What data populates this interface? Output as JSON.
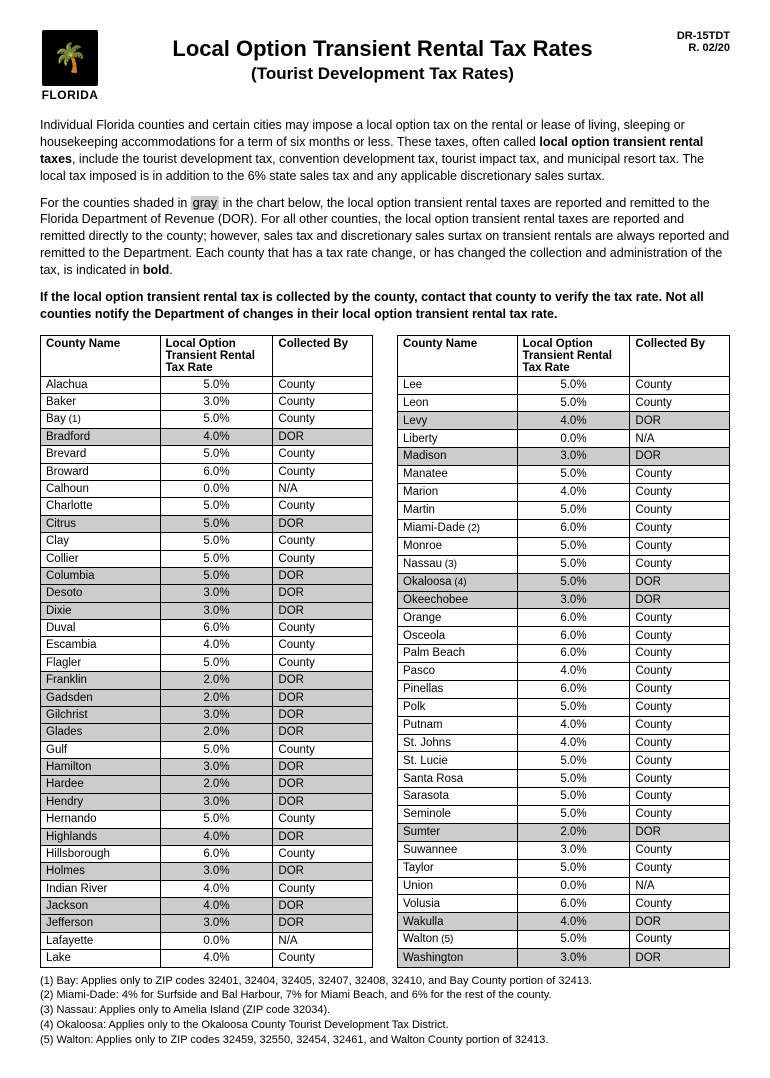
{
  "doc": {
    "form_id": "DR-15TDT",
    "revision": "R. 02/20",
    "logo_label": "FLORIDA",
    "title": "Local Option Transient Rental Tax Rates",
    "subtitle": "(Tourist Development Tax Rates)"
  },
  "paragraphs": {
    "p1_a": "Individual Florida counties and certain cities may impose a local option tax on the rental or lease of living, sleeping or housekeeping accommodations for a term of six months or less. These taxes, often called ",
    "p1_bold": "local option transient rental taxes",
    "p1_b": ", include the tourist development tax, convention development tax, tourist impact tax, and municipal resort tax. The local tax imposed is in addition to the 6% state sales tax and any applicable discretionary sales surtax.",
    "p2_a": "For the counties shaded in ",
    "p2_gray": "gray",
    "p2_b": " in the chart below, the local option transient rental taxes are reported and remitted to the Florida Department of Revenue (DOR). For all other counties, the local option transient rental taxes are reported and remitted directly to the county; however, sales tax and discretionary sales surtax on transient rentals are always reported and remitted to the Department. Each county that has a tax rate change, or has changed the collection and administration of the tax, is indicated in ",
    "p2_bold": "bold",
    "p2_c": ".",
    "p3": "If the local option transient rental tax is collected by the county, contact that county to verify the tax rate. Not all counties notify the Department of changes in their local option transient rental tax rate."
  },
  "table": {
    "headers": {
      "county": "County Name",
      "rate": "Local Option Transient Rental Tax Rate",
      "by": "Collected By"
    },
    "left": [
      {
        "name": "Alachua",
        "rate": "5.0%",
        "by": "County",
        "shaded": false,
        "bold": false
      },
      {
        "name": "Baker",
        "rate": "3.0%",
        "by": "County",
        "shaded": false,
        "bold": false
      },
      {
        "name": "Bay",
        "note": "(1)",
        "rate": "5.0%",
        "by": "County",
        "shaded": false,
        "bold": false
      },
      {
        "name": "Bradford",
        "rate": "4.0%",
        "by": "DOR",
        "shaded": true,
        "bold": false
      },
      {
        "name": "Brevard",
        "rate": "5.0%",
        "by": "County",
        "shaded": false,
        "bold": false
      },
      {
        "name": "Broward",
        "rate": "6.0%",
        "by": "County",
        "shaded": false,
        "bold": false
      },
      {
        "name": "Calhoun",
        "rate": "0.0%",
        "by": "N/A",
        "shaded": false,
        "bold": false
      },
      {
        "name": "Charlotte",
        "rate": "5.0%",
        "by": "County",
        "shaded": false,
        "bold": false
      },
      {
        "name": "Citrus",
        "rate": "5.0%",
        "by": "DOR",
        "shaded": true,
        "bold": false
      },
      {
        "name": "Clay",
        "rate": "5.0%",
        "by": "County",
        "shaded": false,
        "bold": false
      },
      {
        "name": "Collier",
        "rate": "5.0%",
        "by": "County",
        "shaded": false,
        "bold": false
      },
      {
        "name": "Columbia",
        "rate": "5.0%",
        "by": "DOR",
        "shaded": true,
        "bold": false
      },
      {
        "name": "Desoto",
        "rate": "3.0%",
        "by": "DOR",
        "shaded": true,
        "bold": false
      },
      {
        "name": "Dixie",
        "rate": "3.0%",
        "by": "DOR",
        "shaded": true,
        "bold": false
      },
      {
        "name": "Duval",
        "rate": "6.0%",
        "by": "County",
        "shaded": false,
        "bold": false
      },
      {
        "name": "Escambia",
        "rate": "4.0%",
        "by": "County",
        "shaded": false,
        "bold": false
      },
      {
        "name": "Flagler",
        "rate": "5.0%",
        "by": "County",
        "shaded": false,
        "bold": false
      },
      {
        "name": "Franklin",
        "rate": "2.0%",
        "by": "DOR",
        "shaded": true,
        "bold": false
      },
      {
        "name": "Gadsden",
        "rate": "2.0%",
        "by": "DOR",
        "shaded": true,
        "bold": false
      },
      {
        "name": "Gilchrist",
        "rate": "3.0%",
        "by": "DOR",
        "shaded": true,
        "bold": false
      },
      {
        "name": "Glades",
        "rate": "2.0%",
        "by": "DOR",
        "shaded": true,
        "bold": false
      },
      {
        "name": "Gulf",
        "rate": "5.0%",
        "by": "County",
        "shaded": false,
        "bold": false
      },
      {
        "name": "Hamilton",
        "rate": "3.0%",
        "by": "DOR",
        "shaded": true,
        "bold": false
      },
      {
        "name": "Hardee",
        "rate": "2.0%",
        "by": "DOR",
        "shaded": true,
        "bold": false
      },
      {
        "name": "Hendry",
        "rate": "3.0%",
        "by": "DOR",
        "shaded": true,
        "bold": false
      },
      {
        "name": "Hernando",
        "rate": "5.0%",
        "by": "County",
        "shaded": false,
        "bold": false
      },
      {
        "name": "Highlands",
        "rate": "4.0%",
        "by": "DOR",
        "shaded": true,
        "bold": false
      },
      {
        "name": "Hillsborough",
        "rate": "6.0%",
        "by": "County",
        "shaded": false,
        "bold": false
      },
      {
        "name": "Holmes",
        "rate": "3.0%",
        "by": "DOR",
        "shaded": true,
        "bold": false
      },
      {
        "name": "Indian River",
        "rate": "4.0%",
        "by": "County",
        "shaded": false,
        "bold": false
      },
      {
        "name": "Jackson",
        "rate": "4.0%",
        "by": "DOR",
        "shaded": true,
        "bold": false
      },
      {
        "name": "Jefferson",
        "rate": "3.0%",
        "by": "DOR",
        "shaded": true,
        "bold": false
      },
      {
        "name": "Lafayette",
        "rate": "0.0%",
        "by": "N/A",
        "shaded": false,
        "bold": false
      },
      {
        "name": "Lake",
        "rate": "4.0%",
        "by": "County",
        "shaded": false,
        "bold": false
      }
    ],
    "right": [
      {
        "name": "Lee",
        "rate": "5.0%",
        "by": "County",
        "shaded": false,
        "bold": false
      },
      {
        "name": "Leon",
        "rate": "5.0%",
        "by": "County",
        "shaded": false,
        "bold": false
      },
      {
        "name": "Levy",
        "rate": "4.0%",
        "by": "DOR",
        "shaded": true,
        "bold": false
      },
      {
        "name": "Liberty",
        "rate": "0.0%",
        "by": "N/A",
        "shaded": false,
        "bold": false
      },
      {
        "name": "Madison",
        "rate": "3.0%",
        "by": "DOR",
        "shaded": true,
        "bold": false
      },
      {
        "name": "Manatee",
        "rate": "5.0%",
        "by": "County",
        "shaded": false,
        "bold": false
      },
      {
        "name": "Marion",
        "rate": "4.0%",
        "by": "County",
        "shaded": false,
        "bold": false
      },
      {
        "name": "Martin",
        "rate": "5.0%",
        "by": "County",
        "shaded": false,
        "bold": false
      },
      {
        "name": "Miami-Dade",
        "note": "(2)",
        "rate": "6.0%",
        "by": "County",
        "shaded": false,
        "bold": false
      },
      {
        "name": "Monroe",
        "rate": "5.0%",
        "by": "County",
        "shaded": false,
        "bold": false
      },
      {
        "name": "Nassau",
        "note": "(3)",
        "rate": "5.0%",
        "by": "County",
        "shaded": false,
        "bold": false
      },
      {
        "name": "Okaloosa",
        "note": "(4)",
        "rate": "5.0%",
        "by": "DOR",
        "shaded": true,
        "bold": false
      },
      {
        "name": "Okeechobee",
        "rate": "3.0%",
        "by": "DOR",
        "shaded": true,
        "bold": false
      },
      {
        "name": "Orange",
        "rate": "6.0%",
        "by": "County",
        "shaded": false,
        "bold": false
      },
      {
        "name": "Osceola",
        "rate": "6.0%",
        "by": "County",
        "shaded": false,
        "bold": false
      },
      {
        "name": "Palm Beach",
        "rate": "6.0%",
        "by": "County",
        "shaded": false,
        "bold": false
      },
      {
        "name": "Pasco",
        "rate": "4.0%",
        "by": "County",
        "shaded": false,
        "bold": false
      },
      {
        "name": "Pinellas",
        "rate": "6.0%",
        "by": "County",
        "shaded": false,
        "bold": false
      },
      {
        "name": "Polk",
        "rate": "5.0%",
        "by": "County",
        "shaded": false,
        "bold": false
      },
      {
        "name": "Putnam",
        "rate": "4.0%",
        "by": "County",
        "shaded": false,
        "bold": false
      },
      {
        "name": "St. Johns",
        "rate": "4.0%",
        "by": "County",
        "shaded": false,
        "bold": false
      },
      {
        "name": "St. Lucie",
        "rate": "5.0%",
        "by": "County",
        "shaded": false,
        "bold": false
      },
      {
        "name": "Santa Rosa",
        "rate": "5.0%",
        "by": "County",
        "shaded": false,
        "bold": false
      },
      {
        "name": "Sarasota",
        "rate": "5.0%",
        "by": "County",
        "shaded": false,
        "bold": false
      },
      {
        "name": "Seminole",
        "rate": "5.0%",
        "by": "County",
        "shaded": false,
        "bold": false
      },
      {
        "name": "Sumter",
        "rate": "2.0%",
        "by": "DOR",
        "shaded": true,
        "bold": false
      },
      {
        "name": "Suwannee",
        "rate": "3.0%",
        "by": "County",
        "shaded": false,
        "bold": false
      },
      {
        "name": "Taylor",
        "rate": "5.0%",
        "by": "County",
        "shaded": false,
        "bold": false
      },
      {
        "name": "Union",
        "rate": "0.0%",
        "by": "N/A",
        "shaded": false,
        "bold": false
      },
      {
        "name": "Volusia",
        "rate": "6.0%",
        "by": "County",
        "shaded": false,
        "bold": false
      },
      {
        "name": "Wakulla",
        "rate": "4.0%",
        "by": "DOR",
        "shaded": true,
        "bold": false
      },
      {
        "name": "Walton",
        "note": "(5)",
        "rate": "5.0%",
        "by": "County",
        "shaded": false,
        "bold": false
      },
      {
        "name": "Washington",
        "rate": "3.0%",
        "by": "DOR",
        "shaded": true,
        "bold": false
      }
    ]
  },
  "footnotes": [
    "(1) Bay: Applies only to ZIP codes 32401, 32404, 32405, 32407, 32408, 32410, and Bay County portion of 32413.",
    "(2) Miami-Dade: 4% for Surfside and Bal Harbour, 7% for Miami Beach, and 6% for the rest of the county.",
    "(3) Nassau: Applies only to Amelia Island (ZIP code 32034).",
    "(4) Okaloosa: Applies only to the Okaloosa County Tourist Development Tax District.",
    "(5) Walton: Applies only to ZIP codes 32459, 32550, 32454, 32461, and Walton County portion of 32413."
  ]
}
